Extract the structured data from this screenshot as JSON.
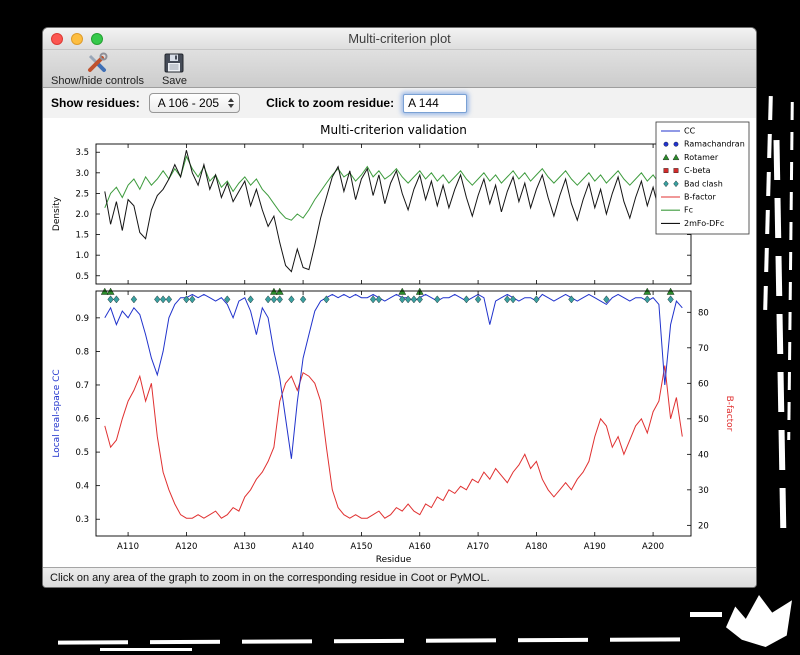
{
  "window": {
    "title": "Multi-criterion plot",
    "toolbar": {
      "show_hide_label": "Show/hide controls",
      "save_label": "Save"
    },
    "controls": {
      "show_residues_label": "Show residues:",
      "residue_range_value": "A 106 - 205",
      "zoom_label": "Click to zoom residue:",
      "zoom_value": "A 144"
    },
    "status_text": "Click on any area of the graph to zoom in on the corresponding residue in Coot or PyMOL."
  },
  "icons": {
    "toolbar": [
      "tools-icon",
      "save-floppy-icon"
    ],
    "combo": "up-down-stepper-icon",
    "titlebar": [
      "close-icon",
      "minimize-icon",
      "zoom-icon"
    ]
  },
  "colors": {
    "cc_blue": "#2133cc",
    "fc_green": "#3f9c3f",
    "bfactor_red": "#e03131",
    "clash_teal": "#3aa0a0",
    "map_black": "#141414"
  },
  "chart_data": {
    "type": "line",
    "title": "Multi-criterion validation",
    "xlabel": "Residue",
    "xlim": [
      104.5,
      206.5
    ],
    "xticks": [
      110,
      120,
      130,
      140,
      150,
      160,
      170,
      180,
      190,
      200
    ],
    "xtick_labels": [
      "A110",
      "A120",
      "A130",
      "A140",
      "A150",
      "A160",
      "A170",
      "A180",
      "A190",
      "A200"
    ],
    "x": [
      106,
      107,
      108,
      109,
      110,
      111,
      112,
      113,
      114,
      115,
      116,
      117,
      118,
      119,
      120,
      121,
      122,
      123,
      124,
      125,
      126,
      127,
      128,
      129,
      130,
      131,
      132,
      133,
      134,
      135,
      136,
      137,
      138,
      139,
      140,
      141,
      142,
      143,
      144,
      145,
      146,
      147,
      148,
      149,
      150,
      151,
      152,
      153,
      154,
      155,
      156,
      157,
      158,
      159,
      160,
      161,
      162,
      163,
      164,
      165,
      166,
      167,
      168,
      169,
      170,
      171,
      172,
      173,
      174,
      175,
      176,
      177,
      178,
      179,
      180,
      181,
      182,
      183,
      184,
      185,
      186,
      187,
      188,
      189,
      190,
      191,
      192,
      193,
      194,
      195,
      196,
      197,
      198,
      199,
      200,
      201,
      202,
      203,
      204,
      205
    ],
    "top_panel": {
      "ylabel": "Density",
      "ylim": [
        0.3,
        3.7
      ],
      "yticks": [
        0.5,
        1.0,
        1.5,
        2.0,
        2.5,
        3.0,
        3.5
      ],
      "ytick_labels": [
        "0.5",
        "1.0",
        "1.5",
        "2.0",
        "2.5",
        "3.0",
        "3.5"
      ],
      "series": [
        {
          "name": "Fc",
          "color": "#3f9c3f",
          "values": [
            2.15,
            2.5,
            2.65,
            2.4,
            2.7,
            2.85,
            2.6,
            2.9,
            2.7,
            2.85,
            3.05,
            2.85,
            3.1,
            2.9,
            3.4,
            3.1,
            2.9,
            3.15,
            2.8,
            2.95,
            2.65,
            2.8,
            2.55,
            2.75,
            2.9,
            2.7,
            2.85,
            2.6,
            2.45,
            2.25,
            2.05,
            1.9,
            1.85,
            2.0,
            1.9,
            2.1,
            2.35,
            2.55,
            2.75,
            2.95,
            3.1,
            2.9,
            3.0,
            2.8,
            2.95,
            3.15,
            2.9,
            3.05,
            2.85,
            2.95,
            3.1,
            2.9,
            2.75,
            2.9,
            3.05,
            2.85,
            3.0,
            2.8,
            2.95,
            2.75,
            2.9,
            3.05,
            2.85,
            2.7,
            2.85,
            3.0,
            2.8,
            2.95,
            2.75,
            2.9,
            3.05,
            2.85,
            3.0,
            2.8,
            2.95,
            3.1,
            2.9,
            2.75,
            2.9,
            3.05,
            2.85,
            2.7,
            2.85,
            3.0,
            2.8,
            2.95,
            2.75,
            2.9,
            3.05,
            2.85,
            2.7,
            2.85,
            3.0,
            2.8,
            2.95,
            2.75,
            2.6,
            2.75,
            2.55,
            2.7
          ]
        },
        {
          "name": "2mFo-DFc",
          "color": "#141414",
          "values": [
            2.55,
            1.75,
            2.3,
            1.6,
            2.35,
            2.2,
            1.55,
            1.4,
            2.1,
            2.45,
            2.6,
            2.85,
            3.2,
            2.9,
            3.55,
            3.0,
            2.7,
            3.2,
            2.6,
            2.95,
            2.4,
            2.75,
            2.3,
            2.55,
            2.8,
            2.2,
            2.6,
            2.1,
            1.7,
            1.95,
            1.3,
            0.75,
            0.6,
            1.15,
            0.7,
            0.65,
            1.25,
            1.9,
            2.4,
            2.9,
            3.15,
            2.55,
            3.05,
            2.35,
            2.85,
            3.1,
            2.45,
            2.95,
            2.25,
            2.75,
            3.05,
            2.5,
            2.1,
            2.6,
            2.95,
            2.35,
            2.8,
            2.2,
            2.7,
            2.15,
            2.6,
            2.95,
            2.4,
            1.95,
            2.45,
            2.85,
            2.25,
            2.7,
            2.05,
            2.55,
            2.9,
            2.3,
            2.75,
            2.15,
            2.6,
            2.95,
            2.4,
            1.95,
            2.45,
            2.85,
            2.25,
            1.85,
            2.35,
            2.75,
            2.15,
            2.6,
            2.0,
            2.5,
            2.9,
            2.3,
            1.9,
            2.4,
            2.8,
            2.2,
            2.65,
            2.1,
            1.85,
            2.3,
            1.75,
            2.2
          ]
        }
      ]
    },
    "bottom_panel": {
      "ylabel_left": "Local real-space CC",
      "ylabel_left_color": "#2133cc",
      "ylim_left": [
        0.25,
        0.98
      ],
      "yticks_left": [
        0.3,
        0.4,
        0.5,
        0.6,
        0.7,
        0.8,
        0.9
      ],
      "ytick_labels_left": [
        "0.3",
        "0.4",
        "0.5",
        "0.6",
        "0.7",
        "0.8",
        "0.9"
      ],
      "ylabel_right": "B-factor",
      "ylabel_right_color": "#e03131",
      "ylim_right": [
        17,
        86
      ],
      "yticks_right": [
        20,
        30,
        40,
        50,
        60,
        70,
        80
      ],
      "ytick_labels_right": [
        "20",
        "30",
        "40",
        "50",
        "60",
        "70",
        "80"
      ],
      "series": [
        {
          "name": "B-factor",
          "axis": "right",
          "color": "#e03131",
          "values": [
            48,
            42,
            44,
            50,
            55,
            58,
            62,
            55,
            60,
            45,
            35,
            30,
            26,
            23,
            22,
            22,
            23,
            22,
            23,
            24,
            22,
            23,
            25,
            24,
            28,
            30,
            33,
            35,
            38,
            42,
            55,
            60,
            62,
            58,
            63,
            62,
            60,
            55,
            42,
            30,
            25,
            23,
            22,
            23,
            22,
            22,
            23,
            24,
            22,
            23,
            25,
            24,
            26,
            24,
            23,
            26,
            25,
            28,
            27,
            30,
            29,
            31,
            30,
            33,
            32,
            35,
            33,
            36,
            34,
            32,
            35,
            37,
            40,
            36,
            38,
            33,
            30,
            28,
            30,
            32,
            30,
            33,
            35,
            38,
            45,
            50,
            48,
            42,
            45,
            40,
            44,
            48,
            50,
            46,
            52,
            55,
            65,
            50,
            56,
            45
          ]
        },
        {
          "name": "CC",
          "axis": "left",
          "color": "#2133cc",
          "values": [
            0.9,
            0.93,
            0.88,
            0.92,
            0.9,
            0.93,
            0.91,
            0.85,
            0.78,
            0.73,
            0.8,
            0.9,
            0.94,
            0.96,
            0.96,
            0.97,
            0.96,
            0.97,
            0.96,
            0.95,
            0.96,
            0.94,
            0.9,
            0.95,
            0.96,
            0.92,
            0.85,
            0.93,
            0.9,
            0.8,
            0.72,
            0.6,
            0.48,
            0.65,
            0.78,
            0.85,
            0.92,
            0.95,
            0.96,
            0.97,
            0.96,
            0.97,
            0.96,
            0.97,
            0.96,
            0.96,
            0.97,
            0.96,
            0.95,
            0.96,
            0.97,
            0.96,
            0.96,
            0.95,
            0.96,
            0.97,
            0.96,
            0.95,
            0.96,
            0.96,
            0.97,
            0.96,
            0.95,
            0.96,
            0.97,
            0.96,
            0.88,
            0.95,
            0.96,
            0.97,
            0.96,
            0.95,
            0.96,
            0.96,
            0.95,
            0.97,
            0.96,
            0.95,
            0.96,
            0.97,
            0.96,
            0.95,
            0.96,
            0.97,
            0.96,
            0.95,
            0.94,
            0.96,
            0.97,
            0.96,
            0.95,
            0.96,
            0.96,
            0.95,
            0.96,
            0.94,
            0.7,
            0.88,
            0.95,
            0.93
          ]
        }
      ],
      "markers": [
        {
          "name": "Ramachandran",
          "shape": "circle",
          "color": "#2133cc",
          "y": 0.955,
          "x": []
        },
        {
          "name": "Rotamer",
          "shape": "triangle",
          "color": "#2c8c2c",
          "y": 0.978,
          "x": [
            106,
            107,
            135,
            136,
            157,
            160,
            199,
            203
          ]
        },
        {
          "name": "C-beta",
          "shape": "square",
          "color": "#d22b2b",
          "y": 0.955,
          "x": []
        },
        {
          "name": "Bad clash",
          "shape": "diamond",
          "color": "#3aa0a0",
          "y": 0.955,
          "x": [
            107,
            108,
            111,
            115,
            116,
            117,
            120,
            121,
            127,
            131,
            134,
            135,
            136,
            138,
            140,
            144,
            152,
            153,
            157,
            158,
            159,
            160,
            163,
            168,
            170,
            175,
            176,
            180,
            186,
            192,
            199,
            203
          ]
        }
      ]
    },
    "legend": {
      "position": "upper right, outside axes",
      "entries": [
        {
          "label": "CC",
          "type": "line",
          "color": "#2133cc"
        },
        {
          "label": "Ramachandran",
          "type": "circle",
          "color": "#2133cc"
        },
        {
          "label": "Rotamer",
          "type": "triangle",
          "color": "#2c8c2c"
        },
        {
          "label": "C-beta",
          "type": "square",
          "color": "#d22b2b"
        },
        {
          "label": "Bad clash",
          "type": "diamond",
          "color": "#3aa0a0"
        },
        {
          "label": "B-factor",
          "type": "line",
          "color": "#e03131"
        },
        {
          "label": "Fc",
          "type": "line",
          "color": "#3f9c3f"
        },
        {
          "label": "2mFo-DFc",
          "type": "line",
          "color": "#141414"
        }
      ]
    },
    "grid": false
  }
}
